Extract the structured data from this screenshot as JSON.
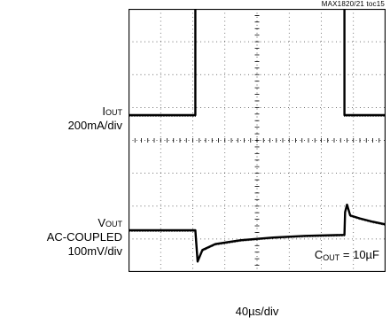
{
  "figure_id": "MAX1820/21 toc15",
  "channels": {
    "iout": {
      "name_main": "I",
      "name_sub": "OUT",
      "scale": "200mA/div"
    },
    "vout": {
      "name_main": "V",
      "name_sub": "OUT",
      "coupling": "AC-COUPLED",
      "scale": "100mV/div"
    }
  },
  "annotation": {
    "main": "C",
    "sub": "OUT",
    "rest": " = 10µF"
  },
  "timebase": "40µs/div",
  "colors": {
    "trace": "#000000",
    "grid": "#000000",
    "background": "#ffffff"
  },
  "chart_data": {
    "type": "line",
    "grid": {
      "h_divisions": 8,
      "v_divisions": 8,
      "minor_ticks_per_div": 5,
      "style": "dotted"
    },
    "x": {
      "label": "40µs/div",
      "range_div": [
        0,
        8
      ]
    },
    "series": [
      {
        "name": "IOUT",
        "scale": "200mA/div",
        "points_div": [
          [
            0,
            0
          ],
          [
            2.08,
            0
          ],
          [
            2.08,
            3.55
          ],
          [
            6.72,
            3.55
          ],
          [
            6.72,
            0
          ],
          [
            8,
            0
          ]
        ]
      },
      {
        "name": "VOUT",
        "scale": "100mV/div",
        "coupling": "AC",
        "points_div": [
          [
            0,
            0
          ],
          [
            2.08,
            0
          ],
          [
            2.15,
            -0.95
          ],
          [
            2.3,
            -0.6
          ],
          [
            2.7,
            -0.42
          ],
          [
            3.5,
            -0.3
          ],
          [
            4.5,
            -0.22
          ],
          [
            5.5,
            -0.17
          ],
          [
            6.72,
            -0.14
          ],
          [
            6.74,
            0.55
          ],
          [
            6.8,
            0.78
          ],
          [
            6.9,
            0.45
          ],
          [
            7.2,
            0.36
          ],
          [
            7.6,
            0.26
          ],
          [
            8,
            0.18
          ]
        ]
      }
    ],
    "annotation": "COUT = 10µF"
  }
}
